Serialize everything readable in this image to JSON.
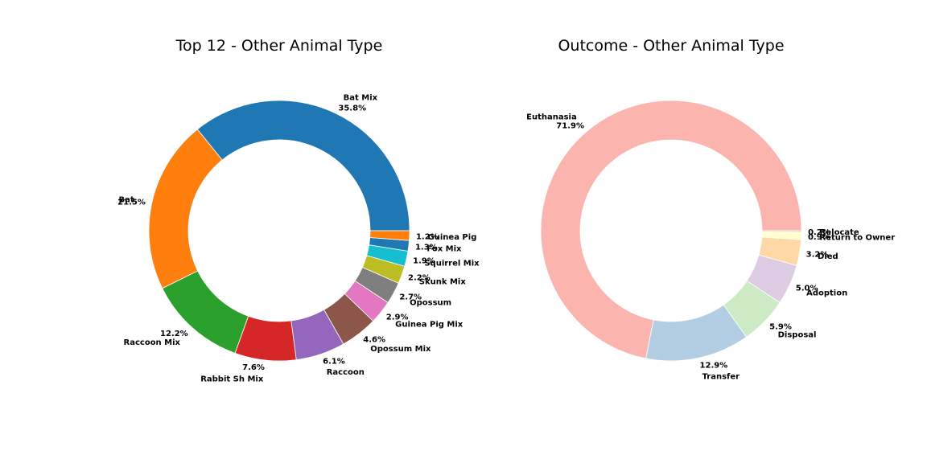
{
  "chart_data": [
    {
      "type": "pie",
      "variant": "donut",
      "title": "Top 12 - Other Animal Type",
      "start_angle_deg": 0,
      "direction": "counterclockwise",
      "slices": [
        {
          "label": "Bat Mix",
          "value": 35.8,
          "pct_label": "35.8%",
          "color": "#1f77b4"
        },
        {
          "label": "Bat",
          "value": 21.5,
          "pct_label": "21.5%",
          "color": "#ff7f0e"
        },
        {
          "label": "Raccoon Mix",
          "value": 12.2,
          "pct_label": "12.2%",
          "color": "#2ca02c"
        },
        {
          "label": "Rabbit Sh Mix",
          "value": 7.6,
          "pct_label": "7.6%",
          "color": "#d62728"
        },
        {
          "label": "Raccoon",
          "value": 6.1,
          "pct_label": "6.1%",
          "color": "#9467bd"
        },
        {
          "label": "Opossum Mix",
          "value": 4.6,
          "pct_label": "4.6%",
          "color": "#8c564b"
        },
        {
          "label": "Guinea Pig Mix",
          "value": 2.9,
          "pct_label": "2.9%",
          "color": "#e377c2"
        },
        {
          "label": "Opossum",
          "value": 2.7,
          "pct_label": "2.7%",
          "color": "#7f7f7f"
        },
        {
          "label": "Skunk Mix",
          "value": 2.2,
          "pct_label": "2.2%",
          "color": "#bcbd22"
        },
        {
          "label": "Squirrel Mix",
          "value": 1.9,
          "pct_label": "1.9%",
          "color": "#17becf"
        },
        {
          "label": "Fox Mix",
          "value": 1.3,
          "pct_label": "1.3%",
          "color": "#1f77b4"
        },
        {
          "label": "Guinea Pig",
          "value": 1.2,
          "pct_label": "1.2%",
          "color": "#ff7f0e"
        }
      ]
    },
    {
      "type": "pie",
      "variant": "donut",
      "title": "Outcome - Other Animal Type",
      "start_angle_deg": 0,
      "direction": "counterclockwise",
      "slices": [
        {
          "label": "Euthanasia",
          "value": 71.9,
          "pct_label": "71.9%",
          "color": "#fbb4ae"
        },
        {
          "label": "Transfer",
          "value": 12.9,
          "pct_label": "12.9%",
          "color": "#b3cde3"
        },
        {
          "label": "Disposal",
          "value": 5.9,
          "pct_label": "5.9%",
          "color": "#ccebc5"
        },
        {
          "label": "Adoption",
          "value": 5.0,
          "pct_label": "5.0%",
          "color": "#decbe4"
        },
        {
          "label": "Died",
          "value": 3.2,
          "pct_label": "3.2%",
          "color": "#fed9a6"
        },
        {
          "label": "Return to Owner",
          "value": 0.9,
          "pct_label": "0.9%",
          "color": "#ffffcc"
        },
        {
          "label": "Relocate",
          "value": 0.2,
          "pct_label": "0.2%",
          "color": "#e5d8bd"
        }
      ]
    }
  ]
}
